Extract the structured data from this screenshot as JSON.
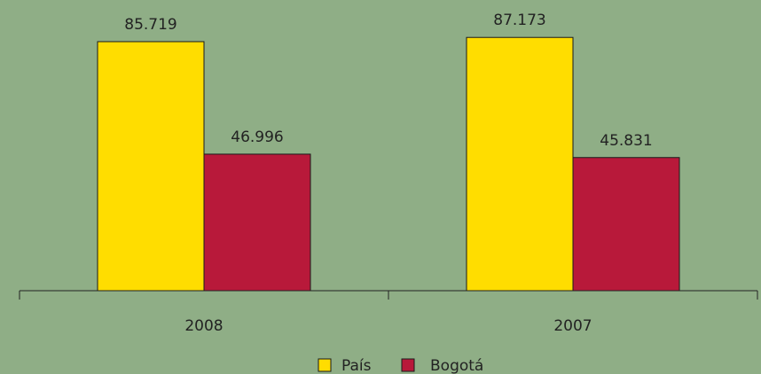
{
  "chart_data": {
    "type": "bar",
    "categories": [
      "2008",
      "2007"
    ],
    "series": [
      {
        "name": "País",
        "values": [
          85.719,
          87.173
        ],
        "labels": [
          "85.719",
          "87.173"
        ],
        "color": "#ffdd00"
      },
      {
        "name": "Bogotá",
        "values": [
          46.996,
          45.831
        ],
        "labels": [
          "46.996",
          "45.831"
        ],
        "color": "#b8193a"
      }
    ],
    "ylim": [
      0,
      100
    ],
    "grid": false,
    "legend": "bottom-center",
    "title": "",
    "xlabel": "",
    "ylabel": ""
  },
  "colors": {
    "background": "#8fae86",
    "axis": "#222222",
    "bar_stroke": "#1a1a1a"
  }
}
